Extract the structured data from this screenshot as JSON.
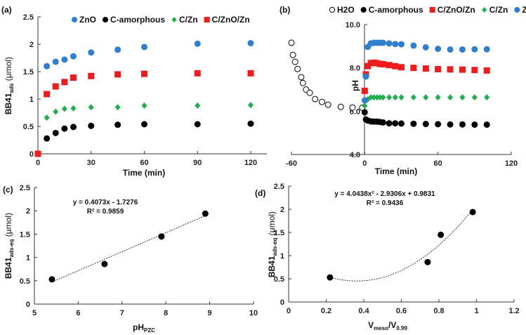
{
  "chart_data": [
    {
      "panel": "(a)",
      "type": "scatter",
      "xlabel": "Time (min)",
      "ylabel": {
        "main": "BB41",
        "sub": "ads",
        "unit": " (μmol)"
      },
      "xlim": [
        0,
        120
      ],
      "ylim": [
        0,
        2.5
      ],
      "xticks": [
        "0",
        "30",
        "60",
        "90",
        "120"
      ],
      "xtick_values": [
        0,
        30,
        60,
        90,
        120
      ],
      "yticks": [
        "0",
        "0.5",
        "1",
        "1.5",
        "2",
        "2.5"
      ],
      "ytick_values": [
        0,
        0.5,
        1,
        1.5,
        2,
        2.5
      ],
      "legend_position": "top",
      "series": [
        {
          "name": "ZnO",
          "color": "#2f7fd0",
          "marker": "circle",
          "x": [
            5,
            10,
            15,
            20,
            30,
            45,
            60,
            90,
            120
          ],
          "y": [
            1.6,
            1.68,
            1.72,
            1.78,
            1.85,
            1.9,
            1.95,
            2.01,
            2.02
          ]
        },
        {
          "name": "C-amorphous",
          "color": "#000000",
          "marker": "circle",
          "x": [
            5,
            10,
            15,
            20,
            30,
            45,
            60,
            90,
            120
          ],
          "y": [
            0.28,
            0.38,
            0.46,
            0.49,
            0.51,
            0.53,
            0.54,
            0.54,
            0.55
          ]
        },
        {
          "name": "C/Zn",
          "color": "#1fb04c",
          "marker": "diamond",
          "x": [
            5,
            10,
            15,
            20,
            30,
            45,
            60,
            90,
            120
          ],
          "y": [
            0.66,
            0.77,
            0.82,
            0.83,
            0.85,
            0.85,
            0.88,
            0.88,
            0.89
          ]
        },
        {
          "name": "C/ZnO/Zn",
          "color": "#ee1c1c",
          "marker": "square",
          "x": [
            0,
            5,
            10,
            15,
            20,
            30,
            45,
            60,
            90,
            120
          ],
          "y": [
            0,
            1.09,
            1.23,
            1.31,
            1.39,
            1.42,
            1.45,
            1.46,
            1.47,
            1.47
          ]
        }
      ]
    },
    {
      "panel": "(b)",
      "type": "scatter",
      "xlabel": "Time (min)",
      "ylabel": {
        "main": "pH",
        "sub": "",
        "unit": ""
      },
      "xlim": [
        -60,
        120
      ],
      "ylim": [
        4,
        10
      ],
      "xticks": [
        "-60",
        "0",
        "60",
        "120"
      ],
      "xtick_values": [
        -60,
        0,
        60,
        120
      ],
      "yticks": [
        "4.0",
        "6.0",
        "8.0",
        "10.0"
      ],
      "ytick_values": [
        4,
        6,
        8,
        10
      ],
      "legend_position": "top",
      "series": [
        {
          "name": "H2O",
          "color": "#000000",
          "marker": "open-circle",
          "x": [
            -60,
            -58.8,
            -57,
            -55,
            -52,
            -50.6,
            -48,
            -45,
            -40.6,
            -35,
            -30,
            -19.6,
            -10,
            -2
          ],
          "y": [
            9.16,
            8.6,
            8.28,
            7.95,
            7.57,
            7.3,
            7.0,
            6.85,
            6.56,
            6.43,
            6.3,
            6.2,
            6.17,
            6.16
          ]
        },
        {
          "name": "C-amorphous",
          "color": "#000000",
          "marker": "circle",
          "x": [
            0,
            1,
            2.5,
            5,
            7.5,
            10,
            12.5,
            15,
            20,
            25,
            30,
            40,
            50,
            60,
            70,
            80,
            90,
            100
          ],
          "y": [
            5.95,
            5.62,
            5.57,
            5.53,
            5.52,
            5.52,
            5.5,
            5.48,
            5.44,
            5.44,
            5.43,
            5.42,
            5.41,
            5.4,
            5.39,
            5.39,
            5.38,
            5.38
          ]
        },
        {
          "name": "C/ZnO/Zn",
          "color": "#ee1c1c",
          "marker": "square",
          "x": [
            0,
            1,
            2.5,
            5,
            7.5,
            10,
            12.5,
            15,
            20,
            25,
            30,
            40,
            50,
            60,
            70,
            80,
            90,
            100
          ],
          "y": [
            6.94,
            7.7,
            8.08,
            8.22,
            8.24,
            8.22,
            8.18,
            8.17,
            8.13,
            8.08,
            8.03,
            8.0,
            7.97,
            7.94,
            7.93,
            7.92,
            7.9,
            7.88
          ]
        },
        {
          "name": "C/Zn",
          "color": "#1fb04c",
          "marker": "diamond",
          "x": [
            0,
            2.5,
            5,
            7.5,
            10,
            12.5,
            15,
            20,
            25,
            30,
            40,
            50,
            60,
            70,
            80,
            90,
            100
          ],
          "y": [
            6.25,
            6.55,
            6.64,
            6.64,
            6.64,
            6.64,
            6.64,
            6.64,
            6.64,
            6.64,
            6.64,
            6.64,
            6.64,
            6.64,
            6.64,
            6.64,
            6.64
          ]
        },
        {
          "name": "ZnO",
          "color": "#2f7fd0",
          "marker": "circle",
          "x": [
            0,
            1,
            2.5,
            5,
            7.5,
            10,
            12.5,
            15,
            20,
            25,
            30,
            40,
            50,
            60,
            70,
            80,
            90,
            100
          ],
          "y": [
            6.5,
            7.6,
            8.97,
            9.13,
            9.16,
            9.16,
            9.16,
            9.16,
            9.13,
            9.1,
            9.09,
            9.03,
            8.95,
            8.88,
            8.85,
            8.85,
            8.86,
            8.86
          ]
        }
      ]
    },
    {
      "panel": "(c)",
      "type": "scatter",
      "xlabel": {
        "main": "pH",
        "sub": "PZC"
      },
      "ylabel": {
        "main": "BB41",
        "sub": "ads-eq",
        "unit": " (μmol)"
      },
      "xlim": [
        5,
        10
      ],
      "ylim": [
        0,
        2.5
      ],
      "xticks": [
        "5",
        "6",
        "7",
        "8",
        "9",
        "10"
      ],
      "xtick_values": [
        5,
        6,
        7,
        8,
        9,
        10
      ],
      "yticks": [
        "0",
        "0.5",
        "1",
        "1.5",
        "2",
        "2.5"
      ],
      "ytick_values": [
        0,
        0.5,
        1,
        1.5,
        2,
        2.5
      ],
      "series": [
        {
          "name": "data",
          "color": "#000000",
          "marker": "circle",
          "x": [
            5.4,
            6.6,
            7.9,
            8.9
          ],
          "y": [
            0.53,
            0.86,
            1.45,
            1.94
          ]
        }
      ],
      "trendline": {
        "type": "linear",
        "coef": [
          0.4073,
          -1.7276
        ],
        "range": [
          5.4,
          8.9
        ]
      },
      "equation": "y = 0.4073x - 1.7276",
      "r2": "R² = 0.9859"
    },
    {
      "panel": "(d)",
      "type": "scatter",
      "xlabel": {
        "main": "V",
        "sub": "meso",
        "mid": "/V",
        "sub2": "0.99"
      },
      "ylabel": {
        "main": "BB41",
        "sub": "ads-eq",
        "unit": " (μmol)"
      },
      "xlim": [
        0,
        1.2
      ],
      "ylim": [
        0,
        2.5
      ],
      "xticks": [
        "0",
        "0.2",
        "0.4",
        "0.6",
        "0.8",
        "1",
        "1.2"
      ],
      "xtick_values": [
        0,
        0.2,
        0.4,
        0.6,
        0.8,
        1,
        1.2
      ],
      "yticks": [
        "0",
        "0.5",
        "1",
        "1.5",
        "2",
        "2.5"
      ],
      "ytick_values": [
        0,
        0.5,
        1,
        1.5,
        2,
        2.5
      ],
      "series": [
        {
          "name": "data",
          "color": "#000000",
          "marker": "circle",
          "x": [
            0.22,
            0.74,
            0.81,
            0.98
          ],
          "y": [
            0.53,
            0.86,
            1.45,
            1.94
          ]
        }
      ],
      "trendline": {
        "type": "quadratic",
        "coef": [
          4.0438,
          -2.9306,
          0.9831
        ],
        "range": [
          0.22,
          0.98
        ]
      },
      "equation": "y = 4.0438x² - 2.9306x + 0.9831",
      "r2": "R² = 0.9436"
    }
  ]
}
